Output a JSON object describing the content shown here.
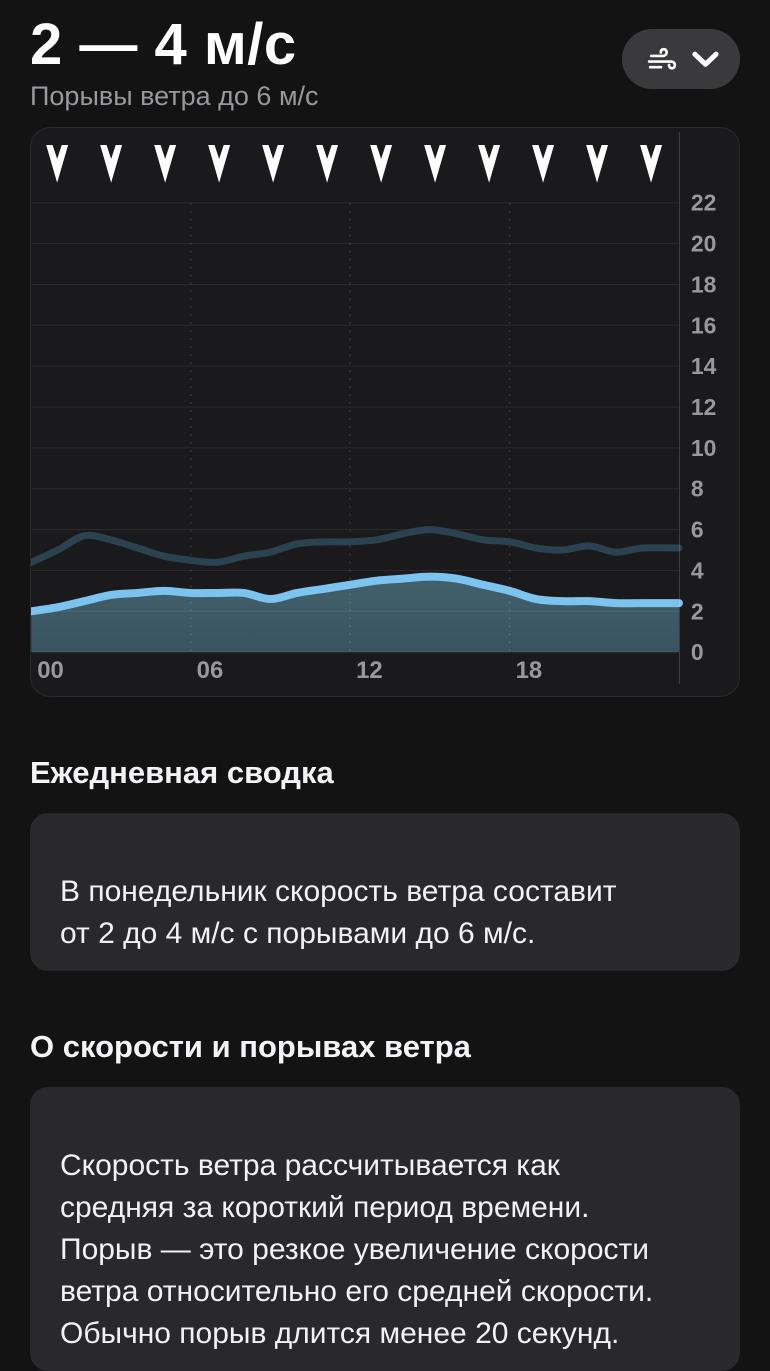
{
  "header": {
    "title": "2 — 4 м/с",
    "subtitle": "Порывы ветра до 6 м/с"
  },
  "metric_selector": {
    "icon": "wind-icon",
    "chevron": "chevron-down-icon"
  },
  "chart_data": {
    "type": "line",
    "title": "",
    "x": [
      0,
      1,
      2,
      3,
      4,
      5,
      6,
      7,
      8,
      9,
      10,
      11,
      12,
      13,
      14,
      15,
      16,
      17,
      18,
      19,
      20,
      21,
      22,
      23
    ],
    "xtick_hours": [
      0,
      6,
      12,
      18
    ],
    "xtick_labels": [
      "00",
      "06",
      "12",
      "18"
    ],
    "yticks": [
      0,
      2,
      4,
      6,
      8,
      10,
      12,
      14,
      16,
      18,
      20,
      22
    ],
    "ylim": [
      0,
      23
    ],
    "grid": true,
    "legend": false,
    "series": [
      {
        "name": "wind_speed",
        "color": "#7cc3f0",
        "area_fill_top": "#44646f",
        "area_fill_bottom": "#3a5563",
        "values": [
          2.0,
          2.2,
          2.5,
          2.8,
          2.9,
          3.0,
          2.9,
          2.9,
          2.9,
          2.6,
          2.9,
          3.1,
          3.3,
          3.5,
          3.6,
          3.7,
          3.6,
          3.3,
          3.0,
          2.6,
          2.5,
          2.5,
          2.4,
          2.4
        ]
      },
      {
        "name": "wind_gusts",
        "color": "#2b4250",
        "values": [
          4.4,
          5.0,
          5.7,
          5.5,
          5.1,
          4.7,
          4.5,
          4.4,
          4.7,
          4.9,
          5.3,
          5.4,
          5.4,
          5.5,
          5.8,
          6.0,
          5.8,
          5.5,
          5.4,
          5.1,
          5.0,
          5.2,
          4.9,
          5.1
        ]
      }
    ],
    "wind_direction_arrows": {
      "count": 12,
      "direction": "down"
    }
  },
  "sections": [
    {
      "heading": "Ежедневная сводка",
      "body": "В понедельник скорость ветра составит\nот 2 до 4 м/с с порывами до 6 м/с."
    },
    {
      "heading": "О скорости и порывах ветра",
      "body": "Скорость ветра рассчитывается как\nсредняя за короткий период времени.\nПорыв — это резкое увеличение скорости\nветра относительно его средней скорости.\nОбычно порыв длится менее 20 секунд."
    }
  ],
  "colors": {
    "page_bg": "#131314",
    "card_bg": "#1a1a1c",
    "info_card_bg": "#29292b",
    "pill_bg": "#3a3a3c",
    "tick": "#98989e"
  }
}
